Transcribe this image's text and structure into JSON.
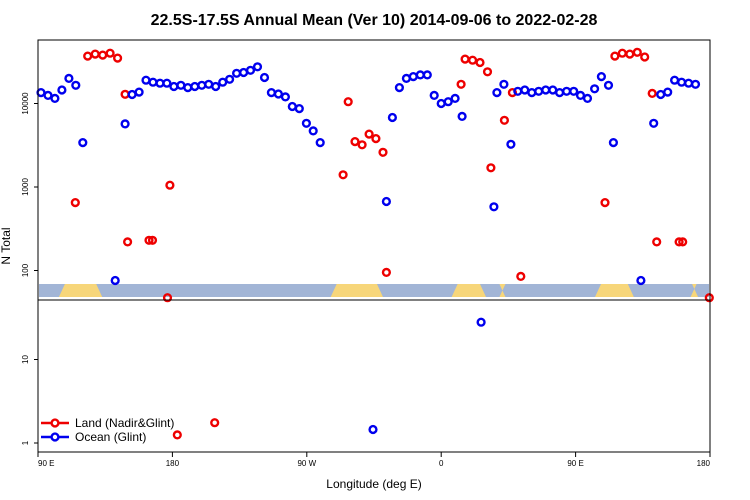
{
  "chart_data": {
    "type": "scatter",
    "title": "22.5S-17.5S Annual Mean (Ver 10)   2014-09-06 to 2022-02-28",
    "xlabel": "Longitude (deg E)",
    "ylabel": "N Total",
    "xlim": [
      90,
      540
    ],
    "yscale": "log",
    "ylim": [
      0.75,
      60000
    ],
    "x_ticks": [
      {
        "value": 90,
        "label": "90 E"
      },
      {
        "value": 180,
        "label": "180"
      },
      {
        "value": 270,
        "label": "90 W"
      },
      {
        "value": 360,
        "label": "0"
      },
      {
        "value": 450,
        "label": "90 E"
      },
      {
        "value": 540,
        "label": "180"
      }
    ],
    "y_ticks": [
      {
        "value": 1,
        "label": "1"
      },
      {
        "value": 10,
        "label": "10"
      },
      {
        "value": 100,
        "label": "100"
      },
      {
        "value": 1000,
        "label": "1000"
      },
      {
        "value": 10000,
        "label": "10000"
      }
    ],
    "land_strip": {
      "value": 60,
      "ocean_color": "#a2b5d6",
      "land_color": "#f7d67a"
    },
    "legend": {
      "position": "bottom-left"
    },
    "series": [
      {
        "name": "Land (Nadir&Glint)",
        "color": "#ee0000",
        "points": [
          [
            115.0,
            650
          ],
          [
            123.3,
            37000
          ],
          [
            128.3,
            39000
          ],
          [
            133.3,
            38000
          ],
          [
            138.3,
            40000
          ],
          [
            143.3,
            35000
          ],
          [
            148.3,
            12900
          ],
          [
            150.0,
            220
          ],
          [
            164.3,
            230
          ],
          [
            166.7,
            230
          ],
          [
            176.7,
            55
          ],
          [
            178.3,
            1050
          ],
          [
            183.3,
            1.25
          ],
          [
            208.3,
            1.75
          ],
          [
            294.3,
            1400
          ],
          [
            297.7,
            10500
          ],
          [
            302.3,
            3500
          ],
          [
            307.0,
            3200
          ],
          [
            311.7,
            4300
          ],
          [
            316.3,
            3800
          ],
          [
            321.0,
            2600
          ],
          [
            323.3,
            95
          ],
          [
            373.3,
            17000
          ],
          [
            376.0,
            34000
          ],
          [
            381.0,
            33000
          ],
          [
            386.0,
            31000
          ],
          [
            391.0,
            24000
          ],
          [
            393.3,
            1700
          ],
          [
            402.3,
            6300
          ],
          [
            407.7,
            13500
          ],
          [
            413.3,
            85
          ],
          [
            539.5,
            55
          ],
          [
            469.7,
            650
          ],
          [
            476.3,
            37000
          ],
          [
            481.3,
            40000
          ],
          [
            486.3,
            39000
          ],
          [
            491.3,
            41000
          ],
          [
            496.3,
            36000
          ],
          [
            501.3,
            13200
          ],
          [
            504.3,
            220
          ],
          [
            519.3,
            220
          ],
          [
            521.7,
            220
          ]
        ]
      },
      {
        "name": "Ocean (Glint)",
        "color": "#0000ee",
        "points": [
          [
            92.0,
            13500
          ],
          [
            96.7,
            12500
          ],
          [
            101.3,
            11500
          ],
          [
            106.0,
            14500
          ],
          [
            110.7,
            20000
          ],
          [
            115.3,
            16500
          ],
          [
            120.0,
            3400
          ],
          [
            141.7,
            76
          ],
          [
            148.3,
            5700
          ],
          [
            153.0,
            12800
          ],
          [
            157.7,
            13700
          ],
          [
            162.3,
            19000
          ],
          [
            167.0,
            18000
          ],
          [
            171.7,
            17500
          ],
          [
            176.3,
            17500
          ],
          [
            181.0,
            16000
          ],
          [
            185.7,
            16500
          ],
          [
            190.3,
            15500
          ],
          [
            195.0,
            16000
          ],
          [
            199.7,
            16500
          ],
          [
            204.3,
            17000
          ],
          [
            209.0,
            16000
          ],
          [
            213.7,
            18000
          ],
          [
            218.3,
            19500
          ],
          [
            223.0,
            23000
          ],
          [
            227.7,
            23500
          ],
          [
            232.3,
            25000
          ],
          [
            237.0,
            27500
          ],
          [
            241.7,
            20500
          ],
          [
            246.3,
            13500
          ],
          [
            251.0,
            13000
          ],
          [
            255.7,
            12000
          ],
          [
            260.3,
            9200
          ],
          [
            265.0,
            8700
          ],
          [
            269.7,
            5800
          ],
          [
            274.3,
            4700
          ],
          [
            279.0,
            3400
          ],
          [
            314.3,
            1.45
          ],
          [
            323.3,
            670
          ],
          [
            327.3,
            6800
          ],
          [
            332.0,
            15500
          ],
          [
            336.7,
            20000
          ],
          [
            341.3,
            21000
          ],
          [
            346.0,
            22000
          ],
          [
            350.7,
            22000
          ],
          [
            355.3,
            12500
          ],
          [
            360.0,
            10000
          ],
          [
            364.7,
            10500
          ],
          [
            369.3,
            11500
          ],
          [
            374.0,
            7000
          ],
          [
            386.7,
            28
          ],
          [
            395.3,
            580
          ],
          [
            397.3,
            13500
          ],
          [
            402.0,
            17000
          ],
          [
            406.7,
            3250
          ],
          [
            411.3,
            14000
          ],
          [
            416.0,
            14500
          ],
          [
            420.7,
            13500
          ],
          [
            425.3,
            14000
          ],
          [
            430.0,
            14500
          ],
          [
            434.7,
            14500
          ],
          [
            439.3,
            13500
          ],
          [
            444.0,
            14000
          ],
          [
            448.7,
            14000
          ],
          [
            453.3,
            12500
          ],
          [
            458.0,
            11500
          ],
          [
            462.7,
            15000
          ],
          [
            467.3,
            21000
          ],
          [
            472.0,
            16500
          ],
          [
            475.3,
            3400
          ],
          [
            493.7,
            76
          ],
          [
            502.3,
            5800
          ],
          [
            507.0,
            12800
          ],
          [
            511.7,
            13700
          ],
          [
            516.3,
            19000
          ],
          [
            521.0,
            18000
          ],
          [
            525.7,
            17500
          ],
          [
            530.3,
            17000
          ]
        ]
      }
    ]
  }
}
